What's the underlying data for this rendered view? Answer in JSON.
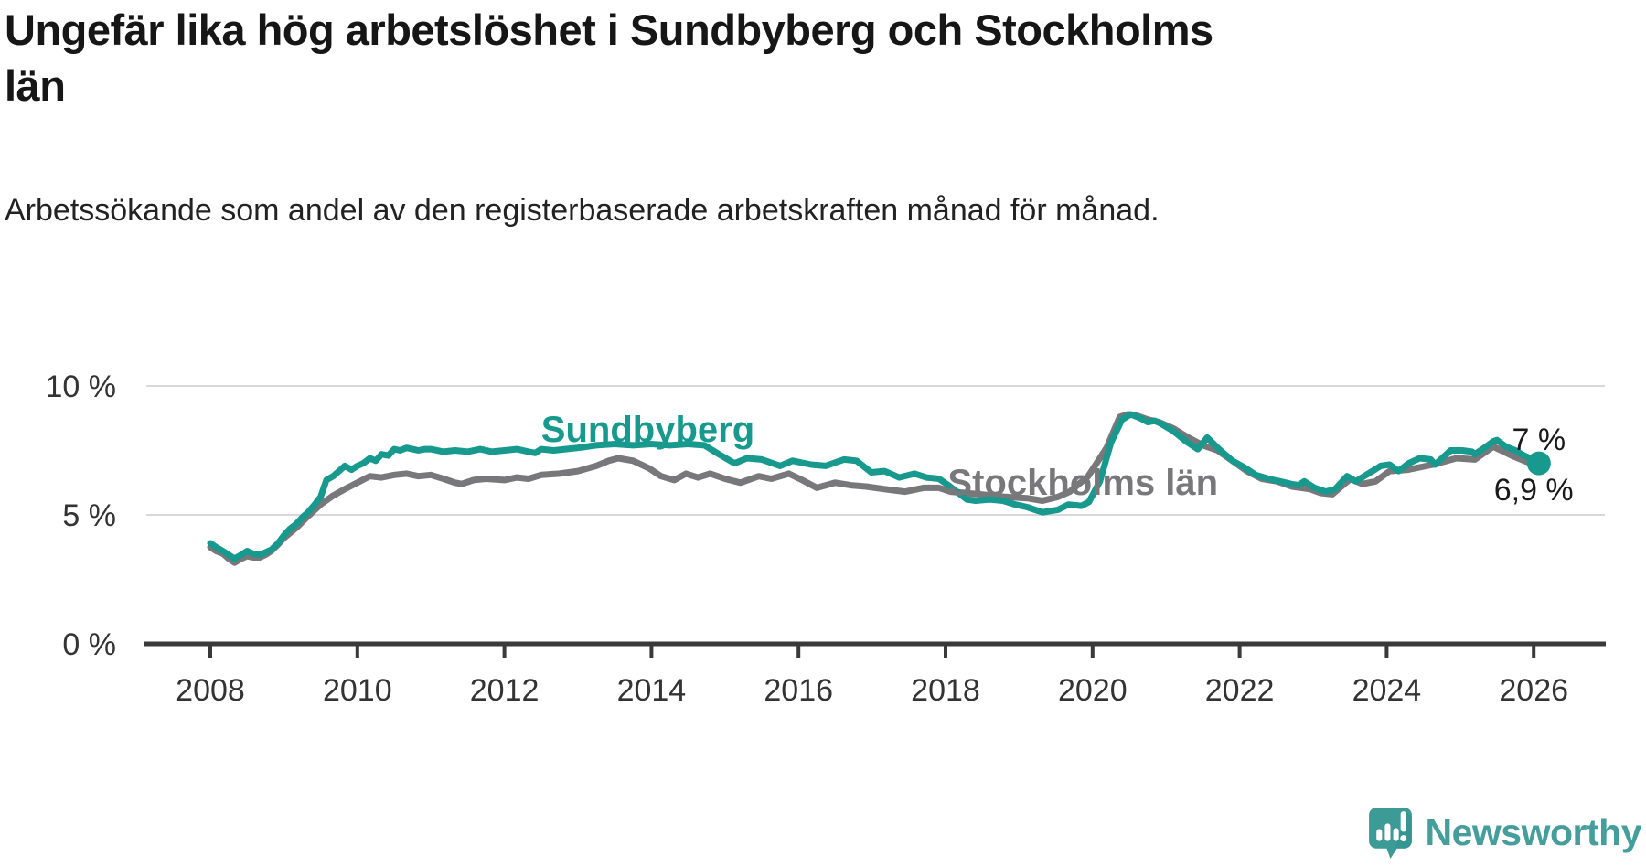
{
  "title": "Ungefär lika hög arbetslöshet i Sundbyberg och Stockholms län",
  "subtitle": "Arbetssökande som andel av den registerbaserade arbetskraften månad för månad.",
  "footer": {
    "brand": "Newsworthy"
  },
  "colors": {
    "sundbyberg": "#17998e",
    "stockholms_lan": "#78787b",
    "grid": "#d8d8d8",
    "axis": "#3a3a3a",
    "tick_text": "#333333",
    "title_text": "#161616",
    "annotation_text": "#1a1a1a",
    "logo": "#459e9b",
    "logo_bubble": "#3d9b97",
    "logo_bubble_shade": "#2f8b8c"
  },
  "chart_data": {
    "type": "line",
    "title": "Ungefär lika hög arbetslöshet i Sundbyberg och Stockholms län",
    "subtitle": "Arbetssökande som andel av den registerbaserade arbetskraften månad för månad.",
    "unit": "%",
    "frequency": "monthly",
    "grid": true,
    "legend_position": "inline-labels",
    "x_axis": {
      "min": 2007.65,
      "max": 2026.6,
      "ticks": [
        2008,
        2010,
        2012,
        2014,
        2016,
        2018,
        2020,
        2022,
        2024,
        2026
      ]
    },
    "y_axis": {
      "min": 0,
      "max": 10,
      "ticks": [
        {
          "value": 10,
          "label": "10 %"
        },
        {
          "value": 5,
          "label": "5 %"
        },
        {
          "value": 0,
          "label": "0 %"
        }
      ]
    },
    "series": [
      {
        "id": "sundbyberg",
        "name": "Sundbyberg",
        "color": "#17998e",
        "marker_end": true,
        "end_label": "7 %",
        "end_value": 7.0,
        "end_label_pos": {
          "t": 2026.07,
          "v": 7.52
        },
        "label_pos": {
          "t": 2012.5,
          "v": 7.84
        },
        "points": [
          [
            2008.0,
            3.9
          ],
          [
            2008.08,
            3.75
          ],
          [
            2008.17,
            3.6
          ],
          [
            2008.25,
            3.45
          ],
          [
            2008.33,
            3.3
          ],
          [
            2008.42,
            3.45
          ],
          [
            2008.5,
            3.6
          ],
          [
            2008.58,
            3.5
          ],
          [
            2008.67,
            3.45
          ],
          [
            2008.75,
            3.55
          ],
          [
            2008.83,
            3.65
          ],
          [
            2008.92,
            3.9
          ],
          [
            2009.0,
            4.2
          ],
          [
            2009.08,
            4.45
          ],
          [
            2009.17,
            4.65
          ],
          [
            2009.25,
            4.9
          ],
          [
            2009.33,
            5.1
          ],
          [
            2009.42,
            5.4
          ],
          [
            2009.5,
            5.7
          ],
          [
            2009.58,
            6.35
          ],
          [
            2009.67,
            6.5
          ],
          [
            2009.75,
            6.7
          ],
          [
            2009.83,
            6.9
          ],
          [
            2009.92,
            6.75
          ],
          [
            2010.0,
            6.9
          ],
          [
            2010.08,
            7.0
          ],
          [
            2010.17,
            7.2
          ],
          [
            2010.25,
            7.1
          ],
          [
            2010.33,
            7.35
          ],
          [
            2010.42,
            7.3
          ],
          [
            2010.5,
            7.55
          ],
          [
            2010.58,
            7.5
          ],
          [
            2010.67,
            7.6
          ],
          [
            2010.75,
            7.55
          ],
          [
            2010.83,
            7.5
          ],
          [
            2010.92,
            7.55
          ],
          [
            2011.0,
            7.55
          ],
          [
            2011.17,
            7.45
          ],
          [
            2011.33,
            7.5
          ],
          [
            2011.5,
            7.45
          ],
          [
            2011.67,
            7.55
          ],
          [
            2011.83,
            7.45
          ],
          [
            2012.0,
            7.5
          ],
          [
            2012.17,
            7.55
          ],
          [
            2012.33,
            7.45
          ],
          [
            2012.42,
            7.4
          ],
          [
            2012.5,
            7.55
          ],
          [
            2012.67,
            7.5
          ],
          [
            2012.83,
            7.55
          ],
          [
            2013.0,
            7.6
          ],
          [
            2013.25,
            7.7
          ],
          [
            2013.5,
            7.75
          ],
          [
            2013.75,
            7.7
          ],
          [
            2014.0,
            7.75
          ],
          [
            2014.25,
            7.7
          ],
          [
            2014.5,
            7.75
          ],
          [
            2014.72,
            7.7
          ],
          [
            2014.92,
            7.35
          ],
          [
            2015.13,
            7.0
          ],
          [
            2015.3,
            7.2
          ],
          [
            2015.5,
            7.15
          ],
          [
            2015.75,
            6.9
          ],
          [
            2015.92,
            7.1
          ],
          [
            2016.17,
            6.95
          ],
          [
            2016.37,
            6.9
          ],
          [
            2016.62,
            7.15
          ],
          [
            2016.79,
            7.1
          ],
          [
            2016.99,
            6.65
          ],
          [
            2017.17,
            6.7
          ],
          [
            2017.37,
            6.45
          ],
          [
            2017.58,
            6.6
          ],
          [
            2017.74,
            6.45
          ],
          [
            2017.91,
            6.4
          ],
          [
            2018.04,
            6.15
          ],
          [
            2018.29,
            5.6
          ],
          [
            2018.41,
            5.55
          ],
          [
            2018.6,
            5.6
          ],
          [
            2018.78,
            5.55
          ],
          [
            2018.95,
            5.4
          ],
          [
            2019.11,
            5.3
          ],
          [
            2019.32,
            5.1
          ],
          [
            2019.53,
            5.2
          ],
          [
            2019.67,
            5.4
          ],
          [
            2019.85,
            5.35
          ],
          [
            2019.95,
            5.5
          ],
          [
            2020.1,
            6.3
          ],
          [
            2020.25,
            7.8
          ],
          [
            2020.4,
            8.7
          ],
          [
            2020.52,
            8.9
          ],
          [
            2020.65,
            8.75
          ],
          [
            2020.75,
            8.6
          ],
          [
            2020.85,
            8.65
          ],
          [
            2020.92,
            8.55
          ],
          [
            2021.1,
            8.25
          ],
          [
            2021.27,
            7.85
          ],
          [
            2021.43,
            7.55
          ],
          [
            2021.56,
            8.0
          ],
          [
            2021.72,
            7.55
          ],
          [
            2021.9,
            7.1
          ],
          [
            2022.06,
            6.85
          ],
          [
            2022.22,
            6.55
          ],
          [
            2022.39,
            6.4
          ],
          [
            2022.55,
            6.3
          ],
          [
            2022.7,
            6.2
          ],
          [
            2022.8,
            6.15
          ],
          [
            2022.88,
            6.3
          ],
          [
            2023.02,
            6.05
          ],
          [
            2023.17,
            5.9
          ],
          [
            2023.3,
            6.0
          ],
          [
            2023.46,
            6.5
          ],
          [
            2023.58,
            6.3
          ],
          [
            2023.75,
            6.6
          ],
          [
            2023.92,
            6.9
          ],
          [
            2024.04,
            6.95
          ],
          [
            2024.16,
            6.7
          ],
          [
            2024.3,
            7.0
          ],
          [
            2024.45,
            7.2
          ],
          [
            2024.6,
            7.15
          ],
          [
            2024.66,
            6.95
          ],
          [
            2024.87,
            7.5
          ],
          [
            2025.03,
            7.5
          ],
          [
            2025.16,
            7.45
          ],
          [
            2025.2,
            7.35
          ],
          [
            2025.33,
            7.6
          ],
          [
            2025.45,
            7.85
          ],
          [
            2025.5,
            7.9
          ],
          [
            2025.62,
            7.65
          ],
          [
            2025.75,
            7.5
          ],
          [
            2025.87,
            7.3
          ],
          [
            2025.99,
            7.15
          ],
          [
            2026.07,
            7.0
          ]
        ]
      },
      {
        "id": "stockholms-lan",
        "name": "Stockholms län",
        "color": "#78787b",
        "marker_end": false,
        "end_label": "6,9 %",
        "end_value": 6.9,
        "end_label_pos": {
          "t": 2026.0,
          "v": 5.57
        },
        "label_pos": {
          "t": 2018.03,
          "v": 5.78
        },
        "points": [
          [
            2008.0,
            3.75
          ],
          [
            2008.08,
            3.6
          ],
          [
            2008.17,
            3.5
          ],
          [
            2008.25,
            3.3
          ],
          [
            2008.33,
            3.15
          ],
          [
            2008.42,
            3.3
          ],
          [
            2008.5,
            3.4
          ],
          [
            2008.58,
            3.35
          ],
          [
            2008.67,
            3.35
          ],
          [
            2008.75,
            3.45
          ],
          [
            2008.83,
            3.6
          ],
          [
            2008.92,
            3.85
          ],
          [
            2009.0,
            4.1
          ],
          [
            2009.17,
            4.5
          ],
          [
            2009.33,
            4.95
          ],
          [
            2009.5,
            5.4
          ],
          [
            2009.67,
            5.75
          ],
          [
            2009.83,
            6.0
          ],
          [
            2010.0,
            6.25
          ],
          [
            2010.17,
            6.5
          ],
          [
            2010.33,
            6.45
          ],
          [
            2010.5,
            6.55
          ],
          [
            2010.67,
            6.6
          ],
          [
            2010.83,
            6.5
          ],
          [
            2011.0,
            6.55
          ],
          [
            2011.17,
            6.4
          ],
          [
            2011.33,
            6.25
          ],
          [
            2011.42,
            6.2
          ],
          [
            2011.58,
            6.35
          ],
          [
            2011.75,
            6.4
          ],
          [
            2012.0,
            6.35
          ],
          [
            2012.17,
            6.45
          ],
          [
            2012.33,
            6.4
          ],
          [
            2012.5,
            6.55
          ],
          [
            2012.75,
            6.6
          ],
          [
            2013.0,
            6.7
          ],
          [
            2013.25,
            6.9
          ],
          [
            2013.42,
            7.1
          ],
          [
            2013.55,
            7.2
          ],
          [
            2013.75,
            7.1
          ],
          [
            2013.97,
            6.8
          ],
          [
            2014.13,
            6.5
          ],
          [
            2014.31,
            6.35
          ],
          [
            2014.47,
            6.6
          ],
          [
            2014.63,
            6.45
          ],
          [
            2014.8,
            6.6
          ],
          [
            2015.0,
            6.4
          ],
          [
            2015.21,
            6.25
          ],
          [
            2015.46,
            6.5
          ],
          [
            2015.63,
            6.4
          ],
          [
            2015.87,
            6.6
          ],
          [
            2016.05,
            6.35
          ],
          [
            2016.25,
            6.05
          ],
          [
            2016.5,
            6.25
          ],
          [
            2016.71,
            6.15
          ],
          [
            2016.92,
            6.1
          ],
          [
            2017.17,
            6.0
          ],
          [
            2017.45,
            5.9
          ],
          [
            2017.7,
            6.05
          ],
          [
            2017.91,
            6.05
          ],
          [
            2018.07,
            5.9
          ],
          [
            2018.45,
            5.8
          ],
          [
            2018.82,
            5.7
          ],
          [
            2019.11,
            5.65
          ],
          [
            2019.32,
            5.55
          ],
          [
            2019.53,
            5.7
          ],
          [
            2019.69,
            5.9
          ],
          [
            2019.94,
            6.5
          ],
          [
            2020.19,
            7.6
          ],
          [
            2020.37,
            8.8
          ],
          [
            2020.48,
            8.9
          ],
          [
            2020.6,
            8.85
          ],
          [
            2020.75,
            8.7
          ],
          [
            2020.9,
            8.6
          ],
          [
            2021.1,
            8.35
          ],
          [
            2021.3,
            8.0
          ],
          [
            2021.5,
            7.7
          ],
          [
            2021.7,
            7.5
          ],
          [
            2021.9,
            7.1
          ],
          [
            2022.1,
            6.7
          ],
          [
            2022.3,
            6.4
          ],
          [
            2022.51,
            6.3
          ],
          [
            2022.71,
            6.1
          ],
          [
            2022.96,
            6.0
          ],
          [
            2023.1,
            5.85
          ],
          [
            2023.26,
            5.8
          ],
          [
            2023.51,
            6.4
          ],
          [
            2023.67,
            6.2
          ],
          [
            2023.85,
            6.3
          ],
          [
            2024.04,
            6.7
          ],
          [
            2024.29,
            6.75
          ],
          [
            2024.63,
            6.95
          ],
          [
            2024.95,
            7.2
          ],
          [
            2025.2,
            7.15
          ],
          [
            2025.45,
            7.65
          ],
          [
            2025.7,
            7.3
          ],
          [
            2025.87,
            7.1
          ],
          [
            2026.06,
            6.9
          ]
        ]
      }
    ]
  }
}
